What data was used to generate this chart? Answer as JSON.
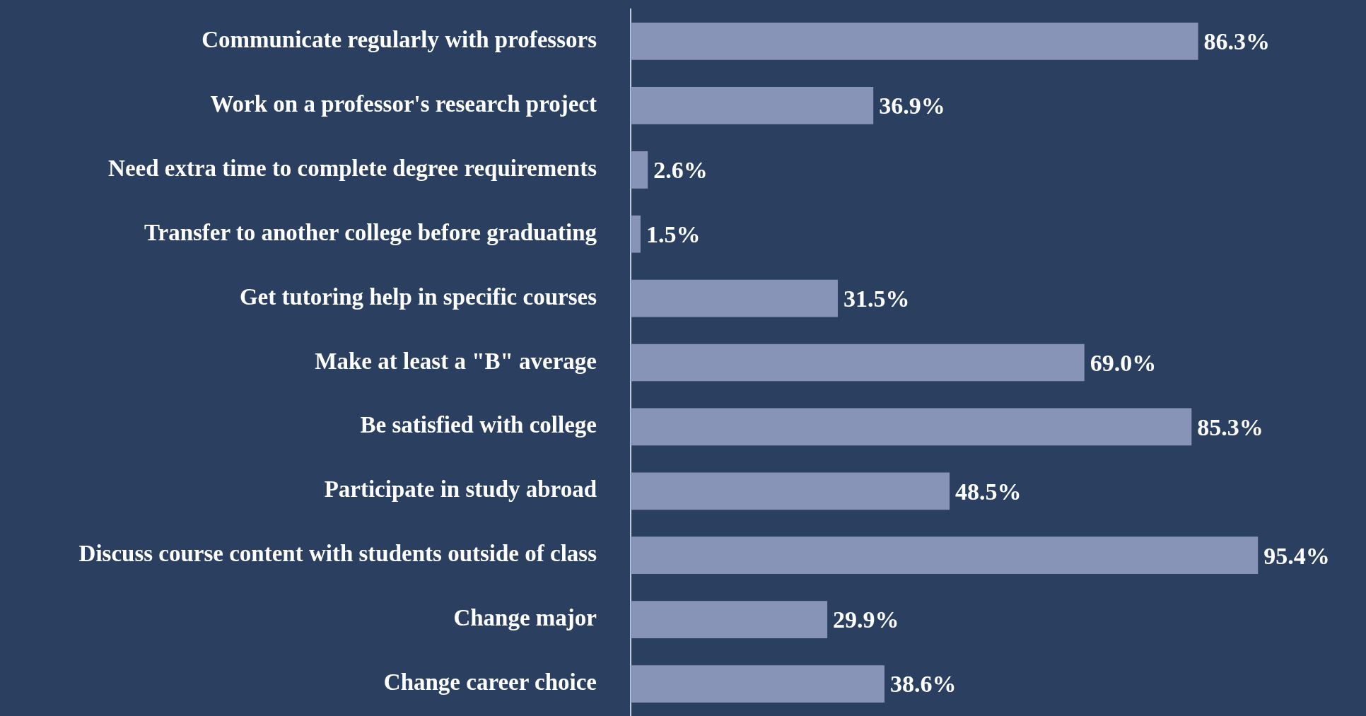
{
  "chart_data": {
    "type": "bar",
    "orientation": "horizontal",
    "categories": [
      "Communicate regularly with professors",
      "Work on a professor's research project",
      "Need extra time to complete degree requirements",
      "Transfer to another college before graduating",
      "Get tutoring help in specific courses",
      "Make at least a \"B\" average",
      "Be satisfied with college",
      "Participate in study abroad",
      "Discuss course content with students outside of class",
      "Change major",
      "Change career choice"
    ],
    "values": [
      86.3,
      36.9,
      2.6,
      1.5,
      31.5,
      69.0,
      85.3,
      48.5,
      95.4,
      29.9,
      38.6
    ],
    "value_labels": [
      "86.3%",
      "36.9%",
      "2.6%",
      "1.5%",
      "31.5%",
      "69.0%",
      "85.3%",
      "48.5%",
      "95.4%",
      "29.9%",
      "38.6%"
    ],
    "color": "#8893b8",
    "grid": false,
    "legend": false
  }
}
